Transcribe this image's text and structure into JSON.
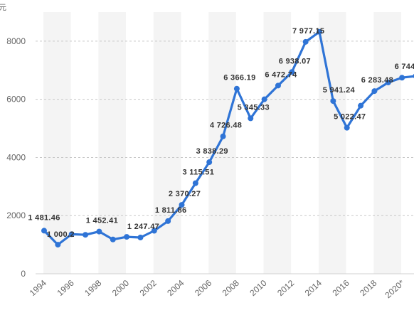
{
  "chart_data": {
    "type": "line",
    "title": "",
    "xlabel": "",
    "ylabel": "",
    "ylabel_visible": "元",
    "x": [
      "1994",
      "1995",
      "1996",
      "1997",
      "1998",
      "1999",
      "2000",
      "2001",
      "2002",
      "2003",
      "2004",
      "2005",
      "2006",
      "2007",
      "2008",
      "2009",
      "2010",
      "2011",
      "2012",
      "2013",
      "2014",
      "2015",
      "2016",
      "2017",
      "2018",
      "2019",
      "2020*",
      "2021"
    ],
    "xticks": [
      "1994",
      "1996",
      "1998",
      "2000",
      "2002",
      "2004",
      "2006",
      "2008",
      "2010",
      "2012",
      "2014",
      "2016",
      "2018",
      "2020*"
    ],
    "series": [
      {
        "values": [
          1481.46,
          1000.2,
          1360,
          1340,
          1452.41,
          1180,
          1270,
          1247.47,
          1480,
          1811.86,
          2370.27,
          3115.51,
          3838.29,
          4726.48,
          6366.19,
          5345.33,
          6000,
          6472.74,
          6938.07,
          7977.15,
          8320,
          5941.24,
          5022.47,
          5780,
          6283.48,
          6580,
          6744,
          6800
        ],
        "labels": [
          "1 481.46",
          "1 000.2",
          "",
          "",
          "1 452.41",
          "",
          "",
          "1 247.47",
          "",
          "1 811.86",
          "2 370.27",
          "3 115.51",
          "3 838.29",
          "4 726.48",
          "6 366.19",
          "5 345.33",
          "",
          "6 472.74",
          "6 938.07",
          "7 977.15",
          "",
          "5 941.24",
          "5 022.47",
          "",
          "6 283.48",
          "",
          "6 744",
          ""
        ],
        "color": "#2f74d6"
      }
    ],
    "ylim": [
      0,
      9000
    ],
    "yticks": [
      0,
      2000,
      4000,
      6000,
      8000
    ],
    "grid": true,
    "band_colors": [
      "#f4f4f4",
      "#ffffff"
    ],
    "legend": "none"
  }
}
